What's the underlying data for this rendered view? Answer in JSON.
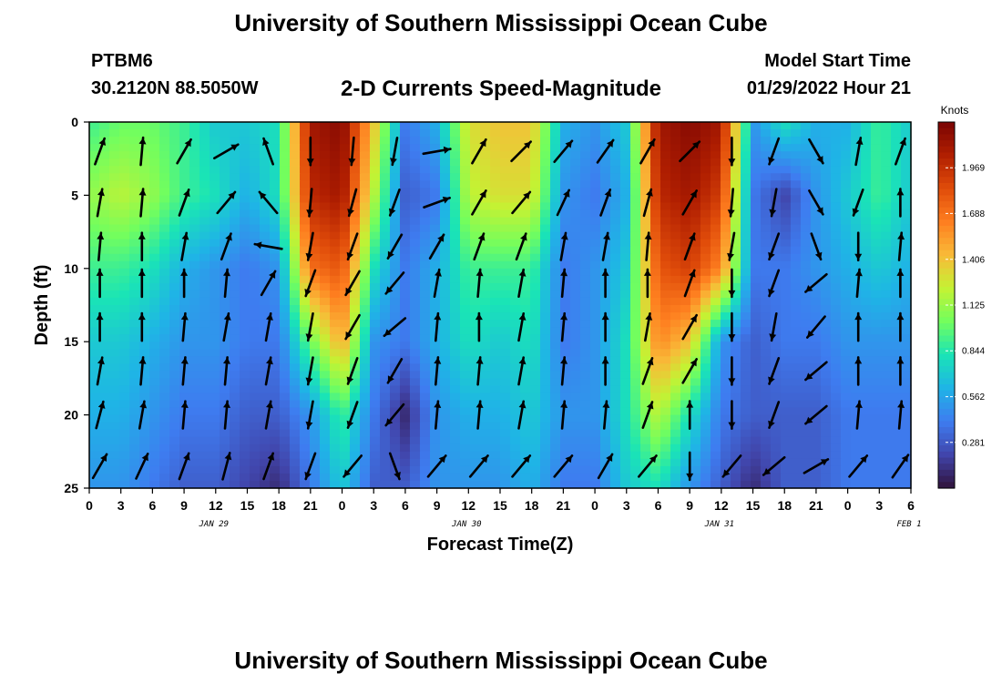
{
  "page": {
    "title_top": "University of Southern Mississippi Ocean Cube",
    "title_bottom": "University of Southern Mississippi Ocean Cube",
    "station_id": "PTBM6",
    "station_coords": "30.2120N  88.5050W",
    "plot_title": "2-D Currents Speed-Magnitude",
    "model_start_label": "Model Start Time",
    "model_start_value": "01/29/2022 Hour 21"
  },
  "colors": {
    "colormap": [
      "#30123b",
      "#4145ab",
      "#3e7cf0",
      "#1fb4e6",
      "#1ae4b6",
      "#72fe5e",
      "#c4f233",
      "#f9ba38",
      "#fe7e1f",
      "#e04c0a",
      "#b11f01",
      "#7a0403"
    ],
    "arrow": "#000000",
    "axis": "#000000"
  },
  "chart_data": {
    "type": "heatmap",
    "xlabel": "Forecast Time(Z)",
    "ylabel": "Depth (ft)",
    "x_unit": "forecast hour from 01/29/2022 00Z",
    "xlim": [
      0,
      78
    ],
    "ylim": [
      0,
      25
    ],
    "x_ticks": [
      0,
      3,
      6,
      9,
      12,
      15,
      18,
      21,
      24,
      27,
      30,
      33,
      36,
      39,
      42,
      45,
      48,
      51,
      54,
      57,
      60,
      63,
      66,
      69,
      72,
      75,
      78
    ],
    "x_tick_labels": [
      "0",
      "3",
      "6",
      "9",
      "12",
      "15",
      "18",
      "21",
      "0",
      "3",
      "6",
      "9",
      "12",
      "15",
      "18",
      "21",
      "0",
      "3",
      "6",
      "9",
      "12",
      "15",
      "18",
      "21",
      "0",
      "3",
      "6"
    ],
    "y_ticks": [
      0,
      5,
      10,
      15,
      20,
      25
    ],
    "y_tick_labels": [
      "0",
      "5",
      "10",
      "15",
      "20",
      "25"
    ],
    "date_labels": [
      {
        "hour": 12,
        "label": "JAN 29"
      },
      {
        "hour": 36,
        "label": "JAN 30"
      },
      {
        "hour": 60,
        "label": "JAN 31"
      },
      {
        "hour": 78,
        "label": "FEB 1"
      }
    ],
    "colorbar": {
      "title": "Knots",
      "min": 0,
      "max": 2.25,
      "ticks": [
        0.281,
        0.562,
        0.844,
        1.125,
        1.406,
        1.688,
        1.969
      ],
      "tick_labels": [
        "0.281",
        "0.562",
        "0.844",
        "1.125",
        "1.406",
        "1.688",
        "1.969"
      ]
    },
    "speed_profile": {
      "hours": [
        0,
        3,
        6,
        9,
        12,
        15,
        18,
        21,
        24,
        27,
        30,
        33,
        36,
        39,
        42,
        45,
        48,
        51,
        54,
        57,
        60,
        63,
        66,
        69,
        72,
        75,
        78
      ],
      "depths": [
        0,
        5,
        10,
        15,
        20,
        25
      ],
      "speed_knots": [
        [
          0.9,
          1.0,
          1.0,
          0.9,
          0.7,
          0.7,
          0.8,
          2.1,
          2.2,
          1.4,
          0.4,
          0.6,
          1.3,
          1.4,
          1.4,
          0.6,
          0.5,
          0.7,
          2.1,
          2.2,
          2.1,
          0.5,
          0.8,
          0.6,
          0.6,
          0.9,
          0.7
        ],
        [
          1.1,
          1.2,
          1.1,
          0.9,
          0.8,
          0.6,
          0.8,
          2.0,
          2.1,
          1.2,
          0.3,
          0.4,
          1.2,
          1.3,
          1.3,
          0.5,
          0.4,
          0.6,
          2.0,
          2.1,
          1.9,
          0.4,
          0.2,
          0.5,
          0.7,
          0.9,
          0.7
        ],
        [
          0.9,
          0.9,
          0.8,
          0.6,
          0.5,
          0.4,
          0.5,
          1.7,
          1.8,
          0.8,
          0.4,
          0.6,
          0.9,
          0.9,
          0.9,
          0.4,
          0.5,
          0.7,
          1.8,
          1.9,
          1.6,
          0.4,
          0.4,
          0.5,
          0.6,
          0.7,
          0.6
        ],
        [
          0.7,
          0.7,
          0.6,
          0.5,
          0.5,
          0.4,
          0.4,
          1.0,
          1.5,
          0.5,
          0.4,
          0.6,
          0.8,
          0.7,
          0.8,
          0.4,
          0.5,
          0.8,
          1.6,
          1.4,
          0.5,
          0.3,
          0.4,
          0.4,
          0.5,
          0.5,
          0.5
        ],
        [
          0.6,
          0.6,
          0.5,
          0.4,
          0.4,
          0.3,
          0.3,
          0.5,
          0.9,
          0.4,
          0.1,
          0.5,
          0.6,
          0.6,
          0.7,
          0.5,
          0.5,
          0.8,
          1.2,
          0.8,
          0.4,
          0.3,
          0.3,
          0.3,
          0.4,
          0.4,
          0.4
        ],
        [
          0.5,
          0.5,
          0.4,
          0.3,
          0.3,
          0.2,
          0.1,
          0.4,
          0.7,
          0.3,
          0.3,
          0.5,
          0.5,
          0.5,
          0.6,
          0.4,
          0.4,
          0.7,
          0.8,
          0.5,
          0.3,
          0.1,
          0.3,
          0.3,
          0.4,
          0.4,
          0.4
        ]
      ]
    },
    "vectors": {
      "hours": [
        1,
        5,
        9,
        13,
        17,
        21,
        25,
        29,
        33,
        37,
        41,
        45,
        49,
        53,
        57,
        61,
        65,
        69,
        73,
        77
      ],
      "depths": [
        2,
        5.5,
        8.5,
        11,
        14,
        17,
        20,
        23.5
      ],
      "direction_deg": [
        [
          20,
          5,
          30,
          60,
          -20,
          180,
          185,
          190,
          80,
          30,
          45,
          40,
          35,
          30,
          45,
          180,
          200,
          150,
          10,
          20
        ],
        [
          10,
          5,
          20,
          40,
          -40,
          185,
          195,
          200,
          70,
          30,
          40,
          25,
          20,
          15,
          30,
          185,
          190,
          150,
          200,
          0
        ],
        [
          5,
          0,
          10,
          20,
          -80,
          190,
          200,
          210,
          30,
          20,
          20,
          10,
          10,
          5,
          20,
          190,
          200,
          160,
          180,
          5
        ],
        [
          0,
          0,
          0,
          5,
          30,
          200,
          210,
          220,
          10,
          5,
          10,
          5,
          0,
          0,
          20,
          180,
          200,
          230,
          5,
          0
        ],
        [
          0,
          0,
          5,
          10,
          10,
          190,
          210,
          230,
          5,
          0,
          10,
          5,
          0,
          10,
          30,
          180,
          190,
          220,
          0,
          0
        ],
        [
          10,
          5,
          5,
          5,
          10,
          190,
          200,
          210,
          5,
          5,
          10,
          5,
          0,
          20,
          30,
          180,
          200,
          230,
          0,
          0
        ],
        [
          15,
          10,
          5,
          5,
          10,
          190,
          200,
          220,
          5,
          5,
          10,
          5,
          5,
          20,
          0,
          180,
          200,
          230,
          5,
          5
        ],
        [
          30,
          25,
          20,
          15,
          20,
          200,
          220,
          160,
          40,
          40,
          40,
          40,
          30,
          40,
          180,
          220,
          230,
          60,
          40,
          35
        ]
      ]
    }
  }
}
